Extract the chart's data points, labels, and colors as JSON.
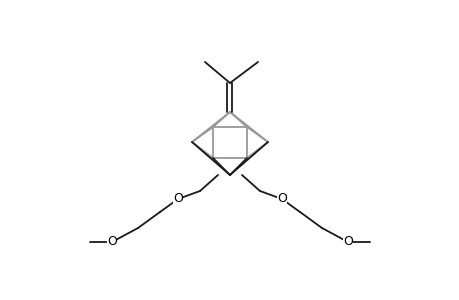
{
  "bg_color": "#ffffff",
  "line_color": "#1a1a1a",
  "gray_color": "#999999",
  "line_width": 1.3,
  "O_font_size": 9,
  "figsize": [
    4.6,
    3.0
  ],
  "dpi": 100,
  "xlim": [
    0,
    460
  ],
  "ylim": [
    0,
    300
  ]
}
